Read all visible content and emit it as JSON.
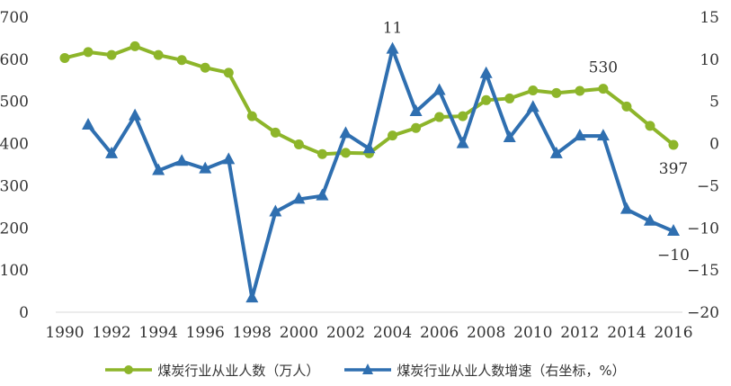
{
  "chart_data": {
    "type": "line",
    "x": [
      1990,
      1991,
      1992,
      1993,
      1994,
      1995,
      1996,
      1997,
      1998,
      1999,
      2000,
      2001,
      2002,
      2003,
      2004,
      2005,
      2006,
      2007,
      2008,
      2009,
      2010,
      2011,
      2012,
      2013,
      2014,
      2015,
      2016
    ],
    "x_tick_labels": [
      "1990",
      "1992",
      "1994",
      "1996",
      "1998",
      "2000",
      "2002",
      "2004",
      "2006",
      "2008",
      "2010",
      "2012",
      "2014",
      "2016"
    ],
    "left_axis": {
      "ylim": [
        0,
        700
      ],
      "ticks": [
        "0",
        "100",
        "200",
        "300",
        "400",
        "500",
        "600",
        "700"
      ]
    },
    "right_axis": {
      "ylim": [
        -20,
        15
      ],
      "ticks": [
        "15",
        "10",
        "5",
        "0",
        "−5",
        "−10",
        "−15",
        "−20"
      ]
    },
    "series": [
      {
        "name": "煤炭行业从业人数（万人）",
        "axis": "left",
        "color": "#8db52a",
        "marker": "circle",
        "values": [
          603,
          617,
          610,
          631,
          610,
          598,
          580,
          568,
          465,
          426,
          398,
          375,
          378,
          377,
          419,
          437,
          463,
          465,
          503,
          507,
          526,
          520,
          525,
          530,
          488,
          442,
          397
        ]
      },
      {
        "name": "煤炭行业从业人数增速（右坐标，%）",
        "axis": "right",
        "color": "#2f6fb0",
        "marker": "triangle",
        "values": [
          null,
          2.2,
          -1.2,
          3.3,
          -3.2,
          -2.1,
          -3.0,
          -1.9,
          -18.3,
          -8.1,
          -6.6,
          -6.2,
          1.2,
          -0.6,
          11.2,
          3.8,
          6.3,
          0.0,
          8.3,
          0.7,
          4.3,
          -1.2,
          0.9,
          0.9,
          -7.8,
          -9.2,
          -10.4
        ]
      }
    ],
    "annotations": [
      {
        "text": "11",
        "series": 1,
        "x": 2004,
        "position": "above"
      },
      {
        "text": "530",
        "series": 0,
        "x": 2013,
        "position": "above"
      },
      {
        "text": "397",
        "series": 0,
        "x": 2016,
        "position": "below"
      },
      {
        "text": "−10",
        "series": 1,
        "x": 2016,
        "position": "below"
      }
    ]
  },
  "legend": [
    {
      "label": "煤炭行业从业人数（万人）",
      "color": "#8db52a",
      "marker": "circle"
    },
    {
      "label": "煤炭行业从业人数增速（右坐标，%）",
      "color": "#2f6fb0",
      "marker": "triangle"
    }
  ]
}
